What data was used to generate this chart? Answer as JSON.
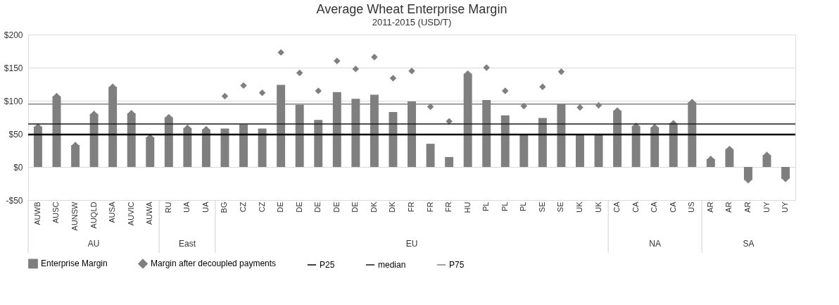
{
  "chart_data": {
    "type": "bar",
    "title": "Average Wheat Enterprise Margin",
    "subtitle": "2011-2015 (USD/T)",
    "categories": [
      "AUWB",
      "AUSC",
      "AUNSW",
      "AUQLD",
      "AUSA",
      "AUVIC",
      "AUWA",
      "RU",
      "UA",
      "UA",
      "BG",
      "CZ",
      "CZ",
      "DE",
      "DE",
      "DE",
      "DE",
      "DE",
      "DK",
      "DK",
      "FR",
      "FR",
      "FR",
      "HU",
      "PL",
      "PL",
      "PL",
      "SE",
      "SE",
      "UK",
      "UK",
      "CA",
      "CA",
      "CA",
      "CA",
      "US",
      "AR",
      "AR",
      "AR",
      "UY",
      "UY"
    ],
    "series": [
      {
        "name": "Enterprise Margin",
        "color": "#7f7f7f",
        "values": [
          61,
          107,
          33,
          80,
          121,
          81,
          45,
          75,
          59,
          57,
          58,
          64,
          58,
          124,
          94,
          71,
          113,
          103,
          109,
          83,
          99,
          35,
          15,
          141,
          101,
          78,
          48,
          74,
          95,
          48,
          48,
          85,
          62,
          60,
          66,
          98,
          12,
          27,
          -20,
          18,
          -18
        ]
      },
      {
        "name": "Margin after decoupled payments",
        "type": "scatter",
        "color": "#7f7f7f",
        "marker": "diamond",
        "values": [
          61,
          107,
          33,
          80,
          121,
          81,
          45,
          75,
          59,
          57,
          107,
          123,
          112,
          173,
          142,
          115,
          160,
          148,
          166,
          134,
          145,
          91,
          69,
          141,
          150,
          115,
          92,
          121,
          144,
          90,
          93,
          85,
          62,
          60,
          66,
          98,
          12,
          27,
          -20,
          18,
          -18
        ]
      }
    ],
    "ylim": [
      -50,
      200
    ],
    "yticks": [
      {
        "value": -50,
        "label": "-$50"
      },
      {
        "value": 0,
        "label": "$0"
      },
      {
        "value": 50,
        "label": "$50"
      },
      {
        "value": 100,
        "label": "$100"
      },
      {
        "value": 150,
        "label": "$150"
      },
      {
        "value": 200,
        "label": "$200"
      }
    ],
    "grid": "y",
    "legend": "bottom",
    "ref_lines": [
      {
        "axis": "y",
        "value": 49,
        "label": "P25",
        "color": "#000000"
      },
      {
        "axis": "y",
        "value": 65,
        "label": "median",
        "color": "#1a1a1a"
      },
      {
        "axis": "y",
        "value": 95,
        "label": "P75",
        "color": "#808080"
      }
    ],
    "annotations": [
      "AU",
      "East",
      "EU",
      "NA",
      "SA"
    ]
  }
}
